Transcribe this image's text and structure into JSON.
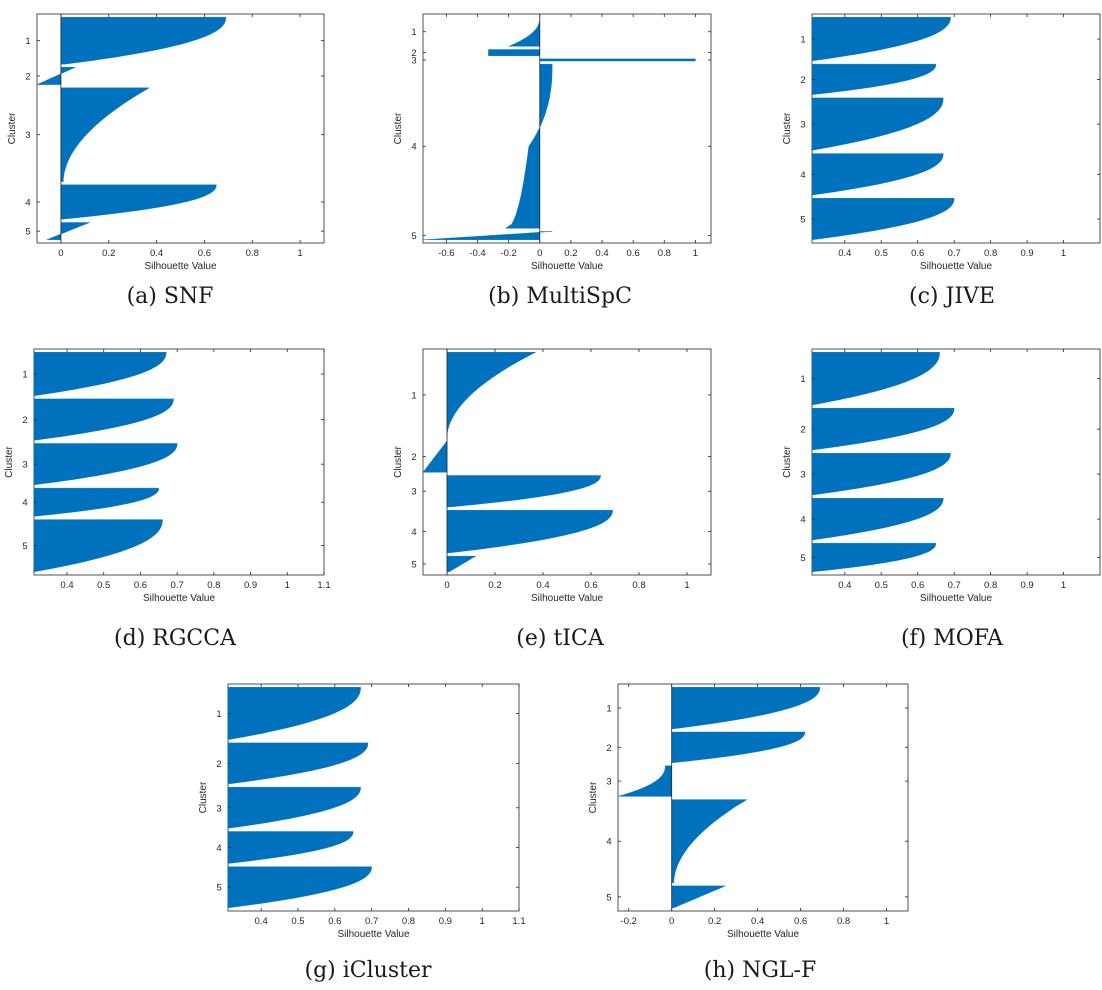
{
  "figure": {
    "bar_color": "#0072BD",
    "axis_color": "#262626"
  },
  "chart_data": [
    {
      "panel": "a",
      "type": "bar",
      "caption": "(a) SNF",
      "xlabel": "Silhouette Value",
      "ylabel": "Cluster",
      "xlim": [
        -0.1,
        1.1
      ],
      "xticks": [
        0,
        0.2,
        0.4,
        0.6,
        0.8,
        1
      ],
      "xtick_labels": [
        "0",
        "0.2",
        "0.4",
        "0.6",
        "0.8",
        "1"
      ],
      "grid": false,
      "clusters": [
        {
          "label": "1",
          "max": 0.69,
          "min": 0.02,
          "size": 19,
          "shape": "concave"
        },
        {
          "label": "2",
          "max": 0.06,
          "min": -0.1,
          "size": 7,
          "shape": "linear"
        },
        {
          "label": "3",
          "max": 0.37,
          "min": 0.01,
          "size": 38,
          "shape": "steep"
        },
        {
          "label": "4",
          "max": 0.65,
          "min": 0.0,
          "size": 14,
          "shape": "concave"
        },
        {
          "label": "5",
          "max": 0.12,
          "min": -0.06,
          "size": 7,
          "shape": "linear"
        }
      ]
    },
    {
      "panel": "b",
      "type": "bar",
      "caption": "(b) MultiSpC",
      "xlabel": "Silhouette Value",
      "ylabel": "Cluster",
      "xlim": [
        -0.75,
        1.1
      ],
      "xticks": [
        -0.6,
        -0.4,
        -0.2,
        0,
        0.2,
        0.4,
        0.6,
        0.8,
        1
      ],
      "xtick_labels": [
        "-0.6",
        "-0.4",
        "-0.2",
        "0",
        "0.2",
        "0.4",
        "0.6",
        "0.8",
        "1"
      ],
      "grid": false,
      "clusters": [
        {
          "label": "1",
          "max": 0.0,
          "min": -0.2,
          "size": 14,
          "shape": "concave"
        },
        {
          "label": "2",
          "max": -0.33,
          "min": -0.33,
          "size": 3,
          "shape": "flat"
        },
        {
          "label": "3",
          "max": 1.0,
          "min": 1.0,
          "size": 1,
          "shape": "flat"
        },
        {
          "label": "4",
          "max": 0.08,
          "min": -0.22,
          "size": 79,
          "shape": "sigmoid"
        },
        {
          "label": "5",
          "max": 0.08,
          "min": -0.75,
          "size": 4,
          "shape": "linear"
        }
      ]
    },
    {
      "panel": "c",
      "type": "bar",
      "caption": "(c) JIVE",
      "xlabel": "Silhouette Value",
      "ylabel": "Cluster",
      "xlim": [
        0.31,
        1.1
      ],
      "xticks": [
        0.4,
        0.5,
        0.6,
        0.7,
        0.8,
        0.9,
        1
      ],
      "xtick_labels": [
        "0.4",
        "0.5",
        "0.6",
        "0.7",
        "0.8",
        "0.9",
        "1"
      ],
      "grid": false,
      "clusters": [
        {
          "label": "1",
          "max": 0.69,
          "min": 0.31,
          "size": 20,
          "shape": "concave"
        },
        {
          "label": "2",
          "max": 0.65,
          "min": 0.31,
          "size": 14,
          "shape": "concave"
        },
        {
          "label": "3",
          "max": 0.67,
          "min": 0.31,
          "size": 24,
          "shape": "concave"
        },
        {
          "label": "4",
          "max": 0.67,
          "min": 0.31,
          "size": 19,
          "shape": "concave"
        },
        {
          "label": "5",
          "max": 0.7,
          "min": 0.31,
          "size": 19,
          "shape": "concave"
        }
      ]
    },
    {
      "panel": "d",
      "type": "bar",
      "caption": "(d) RGCCA",
      "xlabel": "Silhouette Value",
      "ylabel": "Cluster",
      "xlim": [
        0.31,
        1.1
      ],
      "xticks": [
        0.4,
        0.5,
        0.6,
        0.7,
        0.8,
        0.9,
        1,
        1.1
      ],
      "xtick_labels": [
        "0.4",
        "0.5",
        "0.6",
        "0.7",
        "0.8",
        "0.9",
        "1",
        "1.1"
      ],
      "grid": false,
      "clusters": [
        {
          "label": "1",
          "max": 0.67,
          "min": 0.31,
          "size": 20,
          "shape": "concave"
        },
        {
          "label": "2",
          "max": 0.69,
          "min": 0.31,
          "size": 19,
          "shape": "concave"
        },
        {
          "label": "3",
          "max": 0.7,
          "min": 0.31,
          "size": 19,
          "shape": "concave"
        },
        {
          "label": "4",
          "max": 0.65,
          "min": 0.31,
          "size": 13,
          "shape": "concave"
        },
        {
          "label": "5",
          "max": 0.66,
          "min": 0.31,
          "size": 24,
          "shape": "concave"
        }
      ]
    },
    {
      "panel": "e",
      "type": "bar",
      "caption": "(e) tICA",
      "xlabel": "Silhouette Value",
      "ylabel": "Cluster",
      "xlim": [
        -0.1,
        1.1
      ],
      "xticks": [
        0,
        0.2,
        0.4,
        0.6,
        0.8,
        1
      ],
      "xtick_labels": [
        "0",
        "0.2",
        "0.4",
        "0.6",
        "0.8",
        "1"
      ],
      "grid": false,
      "clusters": [
        {
          "label": "1",
          "max": 0.37,
          "min": 0.0,
          "size": 38,
          "shape": "steep"
        },
        {
          "label": "2",
          "max": 0.0,
          "min": -0.1,
          "size": 14,
          "shape": "linear"
        },
        {
          "label": "3",
          "max": 0.64,
          "min": 0.01,
          "size": 14,
          "shape": "concave"
        },
        {
          "label": "4",
          "max": 0.69,
          "min": 0.01,
          "size": 19,
          "shape": "concave"
        },
        {
          "label": "5",
          "max": 0.12,
          "min": 0.01,
          "size": 7,
          "shape": "linear"
        }
      ]
    },
    {
      "panel": "f",
      "type": "bar",
      "caption": "(f) MOFA",
      "xlabel": "Silhouette Value",
      "ylabel": "Cluster",
      "xlim": [
        0.31,
        1.1
      ],
      "xticks": [
        0.4,
        0.5,
        0.6,
        0.7,
        0.8,
        0.9,
        1
      ],
      "xtick_labels": [
        "0.4",
        "0.5",
        "0.6",
        "0.7",
        "0.8",
        "0.9",
        "1"
      ],
      "grid": false,
      "clusters": [
        {
          "label": "1",
          "max": 0.66,
          "min": 0.31,
          "size": 24,
          "shape": "concave"
        },
        {
          "label": "2",
          "max": 0.7,
          "min": 0.31,
          "size": 19,
          "shape": "concave"
        },
        {
          "label": "3",
          "max": 0.69,
          "min": 0.31,
          "size": 19,
          "shape": "concave"
        },
        {
          "label": "4",
          "max": 0.67,
          "min": 0.31,
          "size": 19,
          "shape": "concave"
        },
        {
          "label": "5",
          "max": 0.65,
          "min": 0.31,
          "size": 13,
          "shape": "concave"
        }
      ]
    },
    {
      "panel": "g",
      "type": "bar",
      "caption": "(g) iCluster",
      "xlabel": "Silhouette Value",
      "ylabel": "Cluster",
      "xlim": [
        0.31,
        1.1
      ],
      "xticks": [
        0.4,
        0.5,
        0.6,
        0.7,
        0.8,
        0.9,
        1,
        1.1
      ],
      "xtick_labels": [
        "0.4",
        "0.5",
        "0.6",
        "0.7",
        "0.8",
        "0.9",
        "1",
        "1.1"
      ],
      "grid": false,
      "clusters": [
        {
          "label": "1",
          "max": 0.67,
          "min": 0.31,
          "size": 23,
          "shape": "concave"
        },
        {
          "label": "2",
          "max": 0.69,
          "min": 0.31,
          "size": 18,
          "shape": "concave"
        },
        {
          "label": "3",
          "max": 0.67,
          "min": 0.31,
          "size": 18,
          "shape": "concave"
        },
        {
          "label": "4",
          "max": 0.65,
          "min": 0.31,
          "size": 14,
          "shape": "concave"
        },
        {
          "label": "5",
          "max": 0.7,
          "min": 0.31,
          "size": 18,
          "shape": "concave"
        }
      ]
    },
    {
      "panel": "h",
      "type": "bar",
      "caption": "(h) NGL-F",
      "xlabel": "Silhouette Value",
      "ylabel": "Cluster",
      "xlim": [
        -0.25,
        1.1
      ],
      "xticks": [
        -0.2,
        0,
        0.2,
        0.4,
        0.6,
        0.8,
        1
      ],
      "xtick_labels": [
        "-0.2",
        "0",
        "0.2",
        "0.4",
        "0.6",
        "0.8",
        "1"
      ],
      "grid": false,
      "clusters": [
        {
          "label": "1",
          "max": 0.69,
          "min": 0.01,
          "size": 19,
          "shape": "concave"
        },
        {
          "label": "2",
          "max": 0.62,
          "min": 0.01,
          "size": 14,
          "shape": "concave"
        },
        {
          "label": "3",
          "max": -0.03,
          "min": -0.25,
          "size": 14,
          "shape": "concave"
        },
        {
          "label": "4",
          "max": 0.35,
          "min": 0.01,
          "size": 38,
          "shape": "steep"
        },
        {
          "label": "5",
          "max": 0.25,
          "min": 0.01,
          "size": 10,
          "shape": "linear"
        }
      ]
    }
  ]
}
